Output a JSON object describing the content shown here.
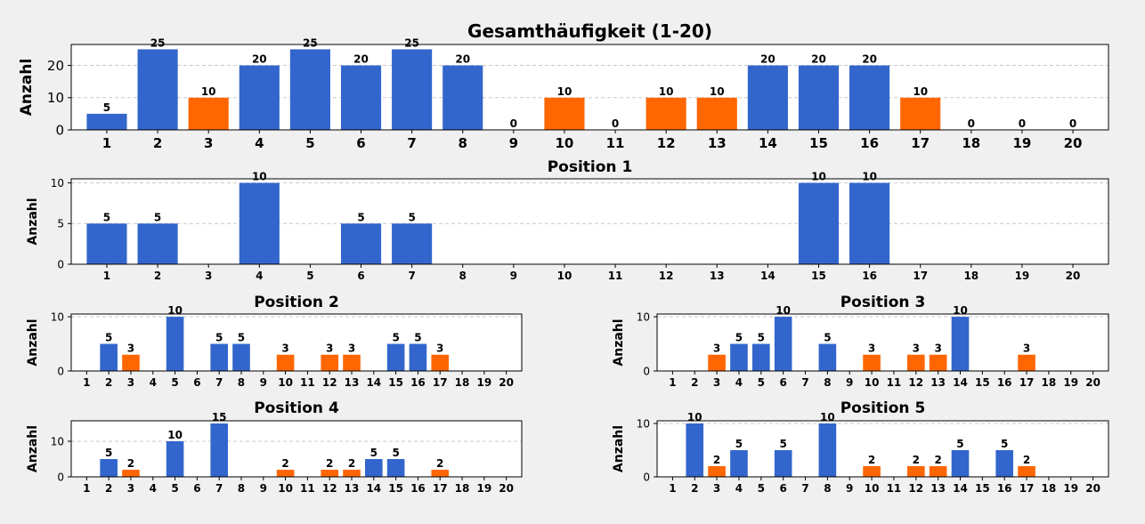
{
  "chart_data": [
    {
      "type": "bar",
      "title": "Gesamthäufigkeit (1-20)",
      "xlabel": "",
      "ylabel": "Anzahl",
      "categories": [
        "1",
        "2",
        "3",
        "4",
        "5",
        "6",
        "7",
        "8",
        "9",
        "10",
        "11",
        "12",
        "13",
        "14",
        "15",
        "16",
        "17",
        "18",
        "19",
        "20"
      ],
      "values": [
        5,
        25,
        10,
        20,
        25,
        20,
        25,
        20,
        0,
        10,
        0,
        10,
        10,
        20,
        20,
        20,
        10,
        0,
        0,
        0
      ],
      "highlight": [
        3,
        10,
        12,
        13,
        17
      ],
      "ylim": [
        0,
        26.5
      ],
      "yticks": [
        0,
        10,
        20
      ],
      "grid": true
    },
    {
      "type": "bar",
      "title": "Position 1",
      "xlabel": "",
      "ylabel": "Anzahl",
      "categories": [
        "1",
        "2",
        "3",
        "4",
        "5",
        "6",
        "7",
        "8",
        "9",
        "10",
        "11",
        "12",
        "13",
        "14",
        "15",
        "16",
        "17",
        "18",
        "19",
        "20"
      ],
      "values": [
        5,
        5,
        0,
        10,
        0,
        5,
        5,
        0,
        0,
        0,
        0,
        0,
        0,
        0,
        10,
        10,
        0,
        0,
        0,
        0
      ],
      "highlight": [],
      "ylim": [
        0,
        10.5
      ],
      "yticks": [
        0,
        5,
        10
      ],
      "grid": true
    },
    {
      "type": "bar",
      "title": "Position 2",
      "xlabel": "",
      "ylabel": "Anzahl",
      "categories": [
        "1",
        "2",
        "3",
        "4",
        "5",
        "6",
        "7",
        "8",
        "9",
        "10",
        "11",
        "12",
        "13",
        "14",
        "15",
        "16",
        "17",
        "18",
        "19",
        "20"
      ],
      "values": [
        0,
        5,
        3,
        0,
        10,
        0,
        5,
        5,
        0,
        3,
        0,
        3,
        3,
        0,
        5,
        5,
        3,
        0,
        0,
        0
      ],
      "highlight": [
        3,
        10,
        12,
        13,
        17
      ],
      "ylim": [
        0,
        10.5
      ],
      "yticks": [
        0,
        10
      ],
      "grid": true
    },
    {
      "type": "bar",
      "title": "Position 3",
      "xlabel": "",
      "ylabel": "Anzahl",
      "categories": [
        "1",
        "2",
        "3",
        "4",
        "5",
        "6",
        "7",
        "8",
        "9",
        "10",
        "11",
        "12",
        "13",
        "14",
        "15",
        "16",
        "17",
        "18",
        "19",
        "20"
      ],
      "values": [
        0,
        0,
        3,
        5,
        5,
        10,
        0,
        5,
        0,
        3,
        0,
        3,
        3,
        10,
        0,
        0,
        3,
        0,
        0,
        0
      ],
      "highlight": [
        3,
        10,
        12,
        13,
        17
      ],
      "ylim": [
        0,
        10.5
      ],
      "yticks": [
        0,
        10
      ],
      "grid": true
    },
    {
      "type": "bar",
      "title": "Position 4",
      "xlabel": "",
      "ylabel": "Anzahl",
      "categories": [
        "1",
        "2",
        "3",
        "4",
        "5",
        "6",
        "7",
        "8",
        "9",
        "10",
        "11",
        "12",
        "13",
        "14",
        "15",
        "16",
        "17",
        "18",
        "19",
        "20"
      ],
      "values": [
        0,
        5,
        2,
        0,
        10,
        0,
        15,
        0,
        0,
        2,
        0,
        2,
        2,
        5,
        5,
        0,
        2,
        0,
        0,
        0
      ],
      "highlight": [
        3,
        10,
        12,
        13,
        17
      ],
      "ylim": [
        0,
        15.75
      ],
      "yticks": [
        0,
        10
      ],
      "grid": true
    },
    {
      "type": "bar",
      "title": "Position 5",
      "xlabel": "",
      "ylabel": "Anzahl",
      "categories": [
        "1",
        "2",
        "3",
        "4",
        "5",
        "6",
        "7",
        "8",
        "9",
        "10",
        "11",
        "12",
        "13",
        "14",
        "15",
        "16",
        "17",
        "18",
        "19",
        "20"
      ],
      "values": [
        0,
        10,
        2,
        5,
        0,
        5,
        0,
        10,
        0,
        2,
        0,
        2,
        2,
        5,
        0,
        5,
        2,
        0,
        0,
        0
      ],
      "highlight": [
        3,
        10,
        12,
        13,
        17
      ],
      "ylim": [
        0,
        10.5
      ],
      "yticks": [
        0,
        10
      ],
      "grid": true
    }
  ],
  "colors": {
    "bar": "#3366cc",
    "highlight": "#ff6600",
    "grid": "#c8c8c8",
    "background": "#f0f0f0",
    "plot_background": "#ffffff"
  }
}
